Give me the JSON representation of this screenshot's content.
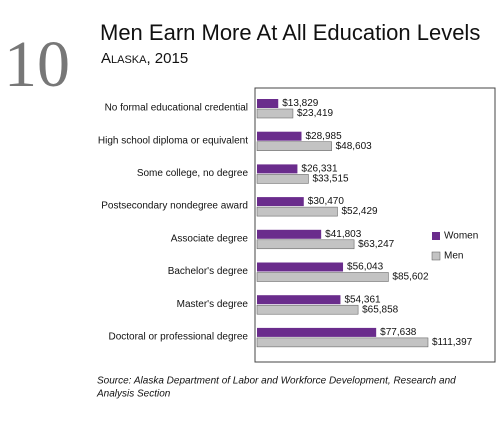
{
  "chart_data": {
    "type": "bar",
    "orientation": "horizontal",
    "badge": "10",
    "title": "Men Earn More At All Education Levels",
    "subtitle": "Alaska, 2015",
    "categories": [
      "No formal educational credential",
      "High school diploma or equivalent",
      "Some college, no degree",
      "Postsecondary nondegree award",
      "Associate degree",
      "Bachelor's degree",
      "Master's degree",
      "Doctoral or professional degree"
    ],
    "series": [
      {
        "name": "Women",
        "color": "#6a2c8c",
        "values": [
          13829,
          28985,
          26331,
          30470,
          41803,
          56043,
          54361,
          77638
        ],
        "value_labels": [
          "$13,829",
          "$28,985",
          "$26,331",
          "$30,470",
          "$41,803",
          "$56,043",
          "$54,361",
          "$77,638"
        ]
      },
      {
        "name": "Men",
        "color": "#c3c3c3",
        "values": [
          23419,
          48603,
          33515,
          52429,
          63247,
          85602,
          65858,
          111397
        ],
        "value_labels": [
          "$23,419",
          "$48,603",
          "$33,515",
          "$52,429",
          "$63,247",
          "$85,602",
          "$65,858",
          "$111,397"
        ]
      }
    ],
    "source": [
      "Source: Alaska Department of Labor and Workforce Development, Research and",
      "Analysis Section"
    ]
  }
}
